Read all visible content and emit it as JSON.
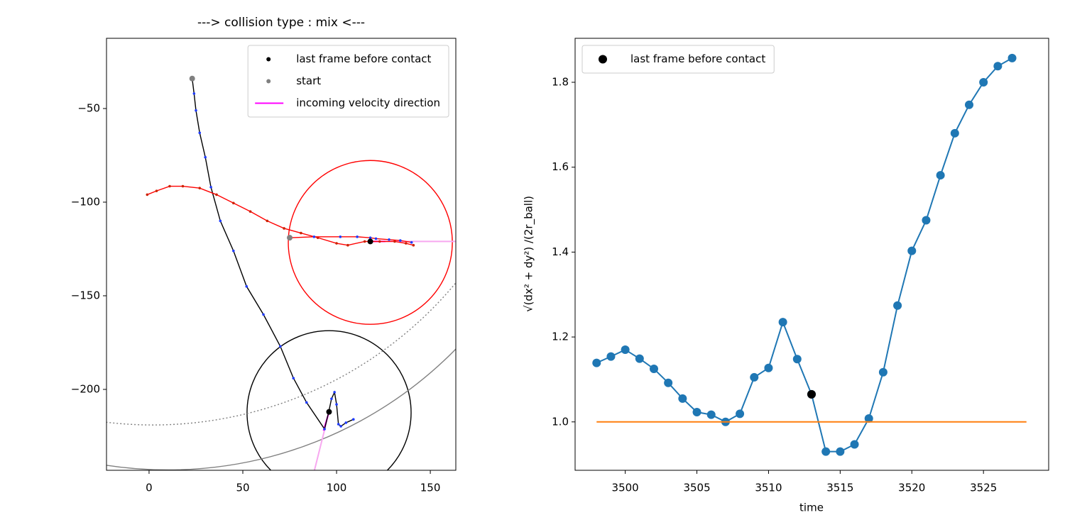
{
  "chart_data": [
    {
      "type": "line",
      "title": "---> collision type : mix <---",
      "xlim": [
        -22.7,
        163.6
      ],
      "ylim": [
        -243.2,
        -12.5
      ],
      "xticks": [
        0,
        50,
        100,
        150
      ],
      "yticks": [
        {
          "value": -50,
          "label": "−50"
        },
        {
          "value": -100,
          "label": "−100"
        },
        {
          "value": -150,
          "label": "−150"
        },
        {
          "value": -200,
          "label": "−200"
        }
      ],
      "legend_loc": "upper right",
      "series": [
        {
          "color": "#000000",
          "marker_color": "#1f3cff",
          "x": [
            23,
            24,
            25,
            27,
            30,
            33,
            38,
            45,
            52,
            61,
            70,
            77,
            84,
            93.6,
            95.8,
            97.3,
            98.9,
            100,
            101,
            102.3,
            105,
            109
          ],
          "values": [
            -34,
            -42,
            -51,
            -63,
            -76,
            -92,
            -110,
            -126,
            -145,
            -160,
            -177,
            -194,
            -207,
            -221.2,
            -212.1,
            -205,
            -201.5,
            -208,
            -218.6,
            -219.7,
            -217.8,
            -216
          ]
        },
        {
          "color": "#ff0000",
          "marker_color": "#cc2200",
          "x": [
            -1,
            4,
            11,
            18,
            27,
            36,
            45,
            54,
            63,
            72,
            81,
            90,
            100,
            106,
            115,
            123,
            131,
            137,
            141
          ],
          "values": [
            -96,
            -94,
            -91.5,
            -91.5,
            -92.5,
            -96,
            -100.5,
            -105,
            -110,
            -114,
            -116.5,
            -119,
            -122,
            -123,
            -121,
            -121,
            -121,
            -122,
            -123
          ]
        },
        {
          "color": "#ff0000",
          "marker_color": "#1f3cff",
          "x": [
            75,
            88,
            102,
            111,
            118,
            121,
            128,
            134,
            140
          ],
          "values": [
            -119,
            -118.5,
            -118.5,
            -118.5,
            -119,
            -119.5,
            -120,
            -120.5,
            -121.5
          ]
        }
      ],
      "points": [
        {
          "name": "last frame before contact",
          "color": "#000000",
          "x": [
            96,
            118
          ],
          "values": [
            -212,
            -121
          ]
        },
        {
          "name": "start",
          "color": "#808080",
          "x": [
            23,
            75
          ],
          "values": [
            -34,
            -119
          ]
        }
      ],
      "segments": [
        {
          "color": "#f7a8f0",
          "x": [
            96,
            84,
            null,
            118,
            170
          ],
          "values": [
            -212,
            -260,
            null,
            -121,
            -121
          ]
        },
        {
          "name": "incoming velocity direction",
          "color": "#ff00ff",
          "x": [
            93,
            96,
            null,
            126,
            118
          ],
          "values": [
            -222,
            -212,
            null,
            -121,
            -121
          ]
        }
      ],
      "circles": [
        {
          "cx": 118,
          "cy": -121.5,
          "r": 43.75,
          "color": "#ff0000"
        },
        {
          "cx": 96,
          "cy": -212.4,
          "r": 43.75,
          "color": "#000000"
        },
        {
          "cx": 10,
          "cy": -28,
          "r": 215,
          "color": "#808080"
        },
        {
          "cx": 2,
          "cy": -9,
          "r": 210,
          "color": "#808080",
          "dash": "dotted"
        }
      ]
    },
    {
      "type": "line",
      "xlabel": "time",
      "ylabel": "√(dx² + dy²) /(2r_ball)",
      "xlim": [
        3496.5,
        3529.55
      ],
      "ylim": [
        0.886,
        1.9036
      ],
      "xticks": [
        3500,
        3505,
        3510,
        3515,
        3520,
        3525
      ],
      "yticks": [
        {
          "value": 1,
          "label": "1.0"
        },
        1.2,
        1.4,
        1.6,
        1.8
      ],
      "legend_loc": "upper left",
      "series": [
        {
          "color": "#1f77b4",
          "marker_color": "#1f77b4",
          "x": [
            3498,
            3499,
            3500,
            3501,
            3502,
            3503,
            3504,
            3505,
            3506,
            3507,
            3508,
            3509,
            3510,
            3511,
            3512,
            3513,
            3514,
            3515,
            3516,
            3517,
            3518,
            3519,
            3520,
            3521,
            3522,
            3523,
            3524,
            3525,
            3526,
            3527
          ],
          "values": [
            1.139,
            1.154,
            1.17,
            1.149,
            1.125,
            1.092,
            1.055,
            1.023,
            1.017,
            1.0,
            1.019,
            1.105,
            1.127,
            1.235,
            1.148,
            1.065,
            0.93,
            0.93,
            0.947,
            1.008,
            1.117,
            1.274,
            1.403,
            1.475,
            1.581,
            1.68,
            1.747,
            1.8,
            1.838,
            1.857
          ]
        },
        {
          "color": "#ff7f0e",
          "x": [
            3498,
            3528
          ],
          "values": [
            1.0,
            1.0
          ]
        }
      ],
      "points": [
        {
          "name": "last frame before contact",
          "color": "#000000",
          "x": [
            3513
          ],
          "values": [
            1.065
          ]
        }
      ]
    }
  ]
}
